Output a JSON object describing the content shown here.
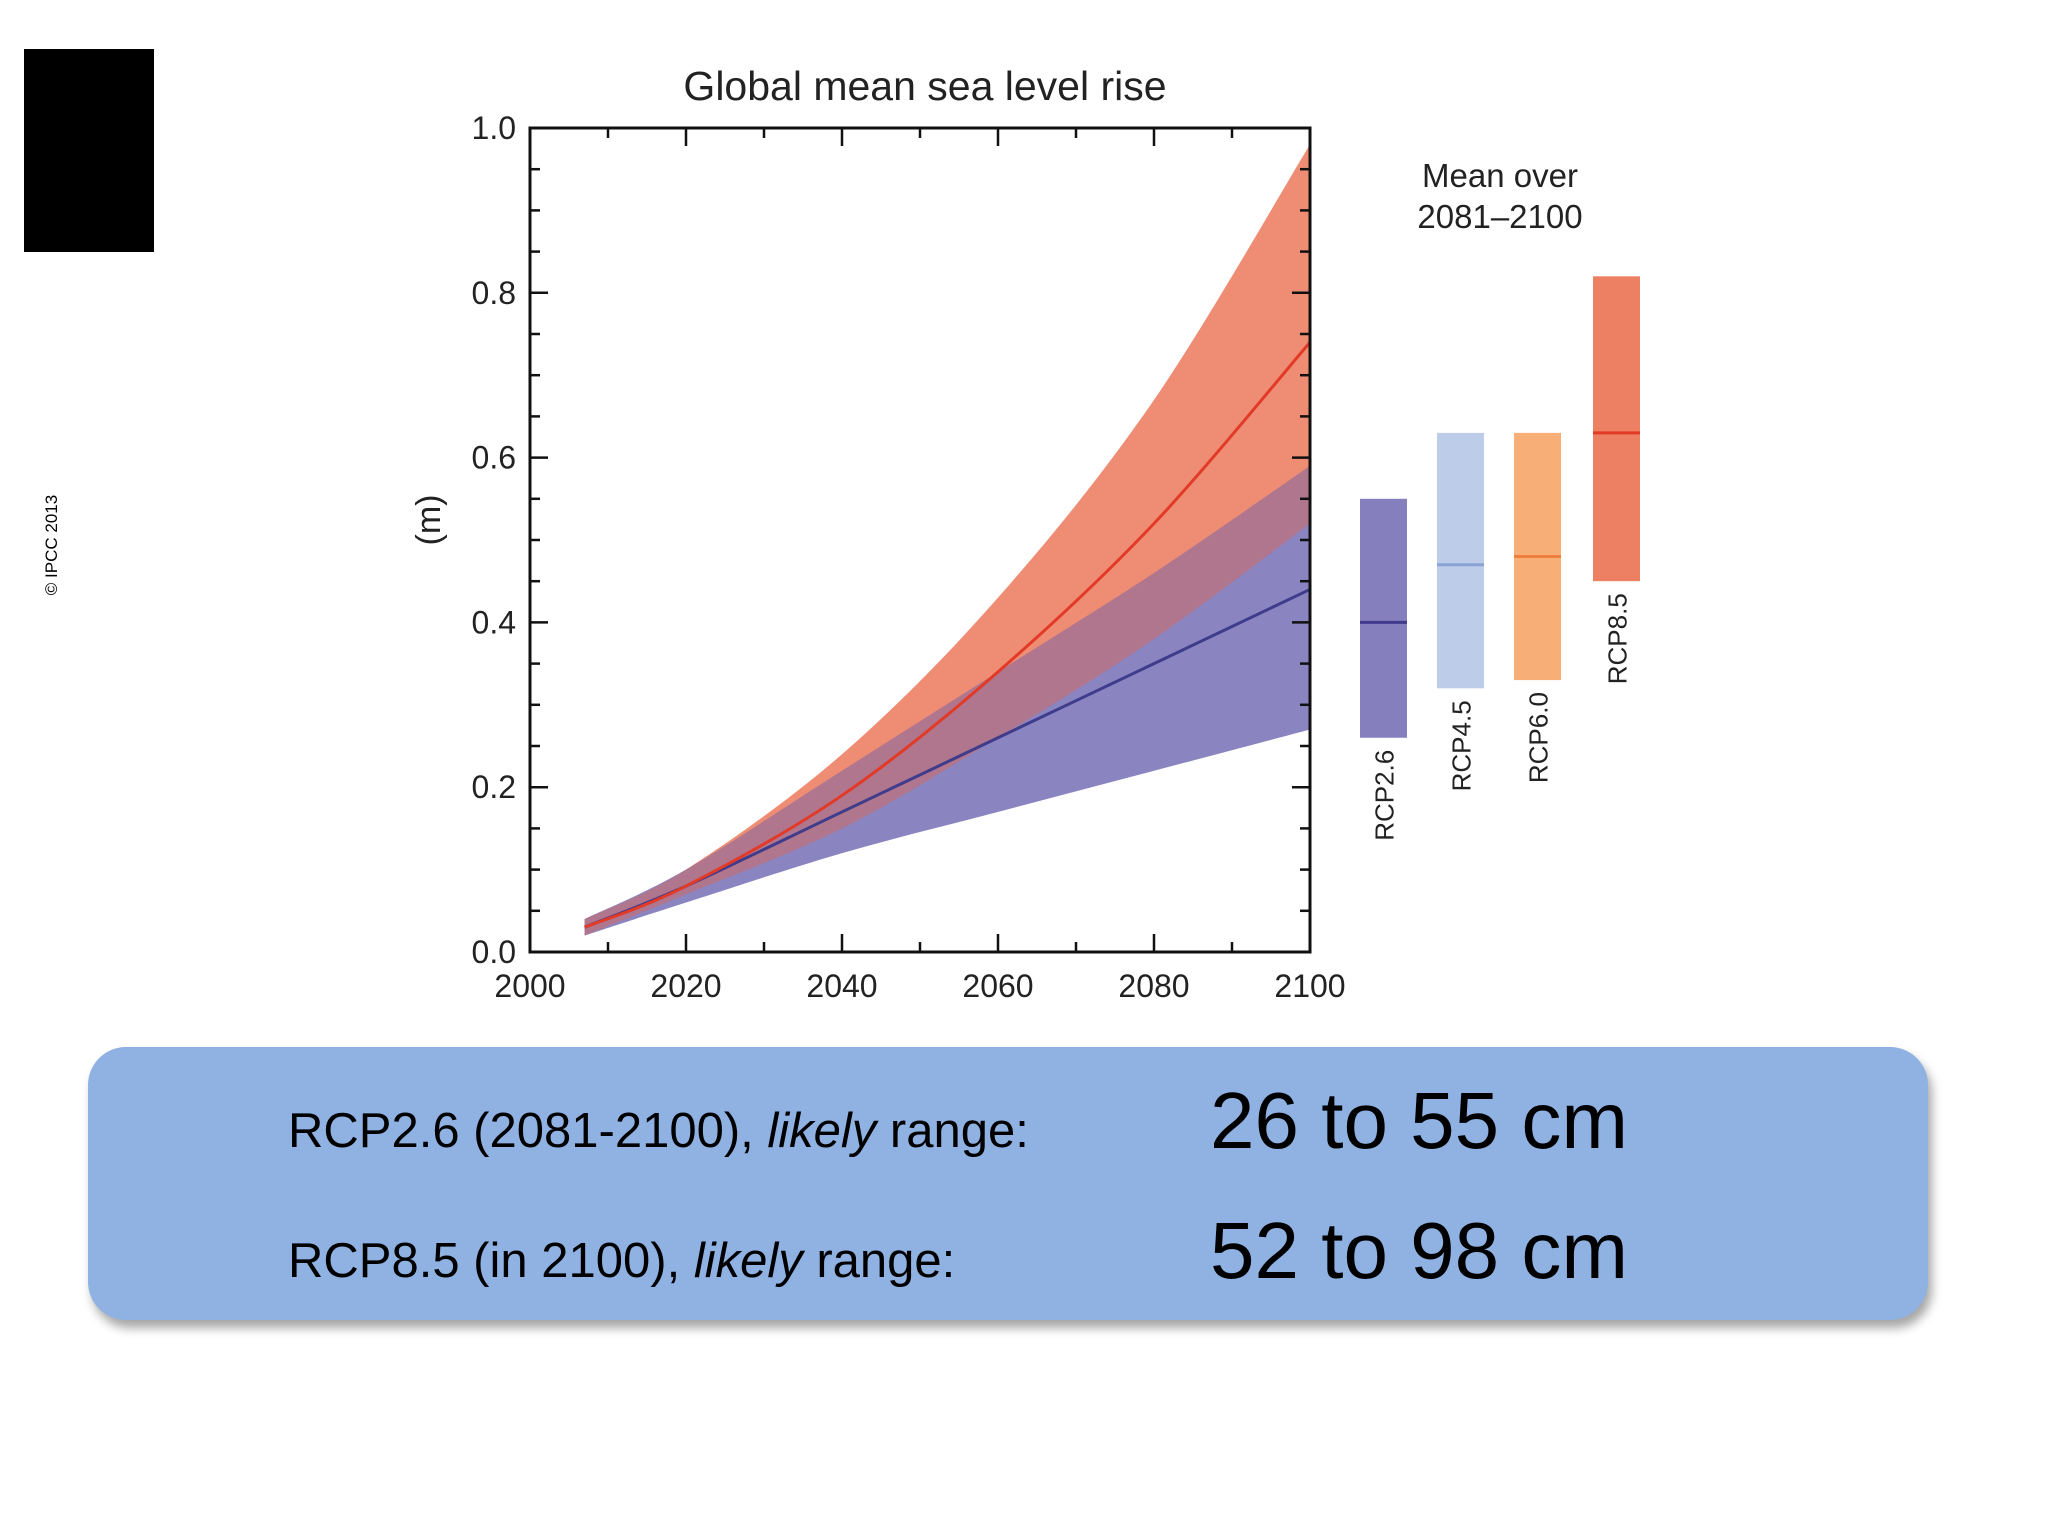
{
  "copyright": "© IPCC 2013",
  "chart_data": {
    "type": "area",
    "title": "Global mean sea level rise",
    "ylabel": "(m)",
    "xlabel": "",
    "xlim": [
      2000,
      2100
    ],
    "ylim": [
      0.0,
      1.0
    ],
    "x_ticks": [
      "2000",
      "2020",
      "2040",
      "2060",
      "2080",
      "2100"
    ],
    "y_ticks": [
      "0.0",
      "0.2",
      "0.4",
      "0.6",
      "0.8",
      "1.0"
    ],
    "colors": {
      "rcp26": "#7b74b8",
      "rcp45": "#b7c8e6",
      "rcp60": "#f7a86b",
      "rcp85": "#eb7456",
      "rcp26_line": "#3f3c8c",
      "rcp85_line": "#e23a26"
    },
    "x": [
      2007,
      2020,
      2040,
      2060,
      2080,
      2100
    ],
    "series": [
      {
        "name": "RCP2.6",
        "mean": [
          0.03,
          0.08,
          0.17,
          0.26,
          0.35,
          0.44
        ],
        "lower": [
          0.02,
          0.06,
          0.12,
          0.17,
          0.22,
          0.27
        ],
        "upper": [
          0.04,
          0.1,
          0.22,
          0.34,
          0.46,
          0.59
        ]
      },
      {
        "name": "RCP8.5",
        "mean": [
          0.03,
          0.08,
          0.19,
          0.34,
          0.52,
          0.74
        ],
        "lower": [
          0.02,
          0.07,
          0.15,
          0.26,
          0.38,
          0.52
        ],
        "upper": [
          0.04,
          0.1,
          0.24,
          0.43,
          0.67,
          0.98
        ]
      }
    ],
    "mean_panel": {
      "title_line1": "Mean over",
      "title_line2": "2081–2100",
      "bars": [
        {
          "name": "RCP2.6",
          "low": 0.26,
          "high": 0.55,
          "median": 0.4
        },
        {
          "name": "RCP4.5",
          "low": 0.32,
          "high": 0.63,
          "median": 0.47
        },
        {
          "name": "RCP6.0",
          "low": 0.33,
          "high": 0.63,
          "median": 0.48
        },
        {
          "name": "RCP8.5",
          "low": 0.45,
          "high": 0.82,
          "median": 0.63
        }
      ]
    }
  },
  "summary": {
    "row1": {
      "label_prefix": "RCP2.6 (2081-2100), ",
      "label_italic": "likely",
      "label_suffix": " range:",
      "value": "26 to 55 cm"
    },
    "row2": {
      "label_prefix": "RCP8.5  (in 2100), ",
      "label_italic": "likely",
      "label_suffix": " range:",
      "value": "52 to 98 cm"
    }
  }
}
